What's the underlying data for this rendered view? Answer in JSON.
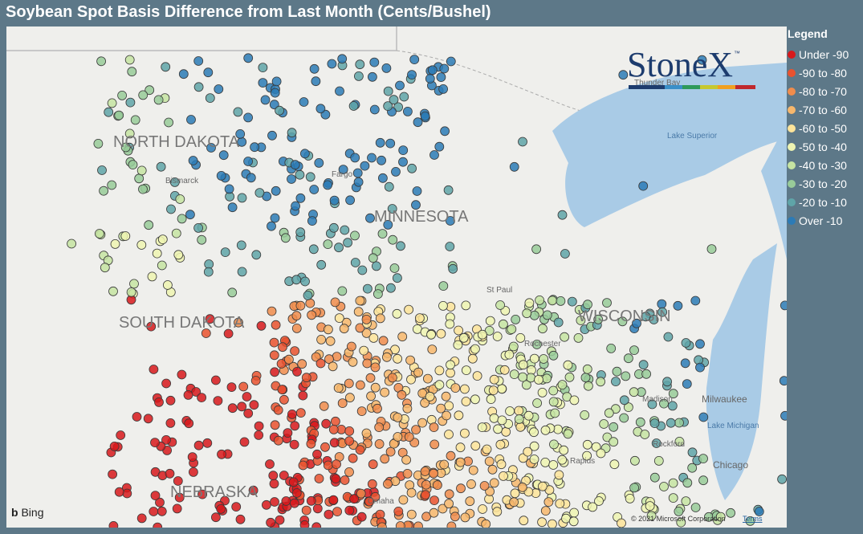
{
  "title": "Soybean Spot Basis Difference from Last Month (Cents/Bushel)",
  "legend": {
    "title": "Legend",
    "items": [
      {
        "label": "Under -90",
        "color": "#d7191c"
      },
      {
        "label": "-90 to -80",
        "color": "#e9522f"
      },
      {
        "label": "-80 to -70",
        "color": "#f08c4c"
      },
      {
        "label": "-70 to -60",
        "color": "#f7b76c"
      },
      {
        "label": "-60 to -50",
        "color": "#fde49a"
      },
      {
        "label": "-50 to -40",
        "color": "#eef4b2"
      },
      {
        "label": "-40 to -30",
        "color": "#c6e4a2"
      },
      {
        "label": "-30 to -20",
        "color": "#98cb99"
      },
      {
        "label": "-20 to -10",
        "color": "#5fa4a8"
      },
      {
        "label": "Over -10",
        "color": "#2c7bb6"
      }
    ]
  },
  "map": {
    "states": [
      "NORTH DAKOTA",
      "MINNESOTA",
      "SOUTH DAKOTA",
      "WISCONSIN",
      "NEBRASKA"
    ],
    "cities": [
      "Bismarck",
      "Fargo",
      "St Paul",
      "Rochester",
      "Madison",
      "Milwaukee",
      "Rockford",
      "Chicago",
      "Omaha",
      "Rapids",
      "Thunder Bay"
    ],
    "water": [
      "Lake Superior",
      "Lake Michigan"
    ]
  },
  "logo": {
    "name": "StoneX",
    "mark": "™"
  },
  "attribution": {
    "provider": "Bing",
    "copyright": "© 2021 Microsoft Corporation",
    "terms": "Terms"
  }
}
